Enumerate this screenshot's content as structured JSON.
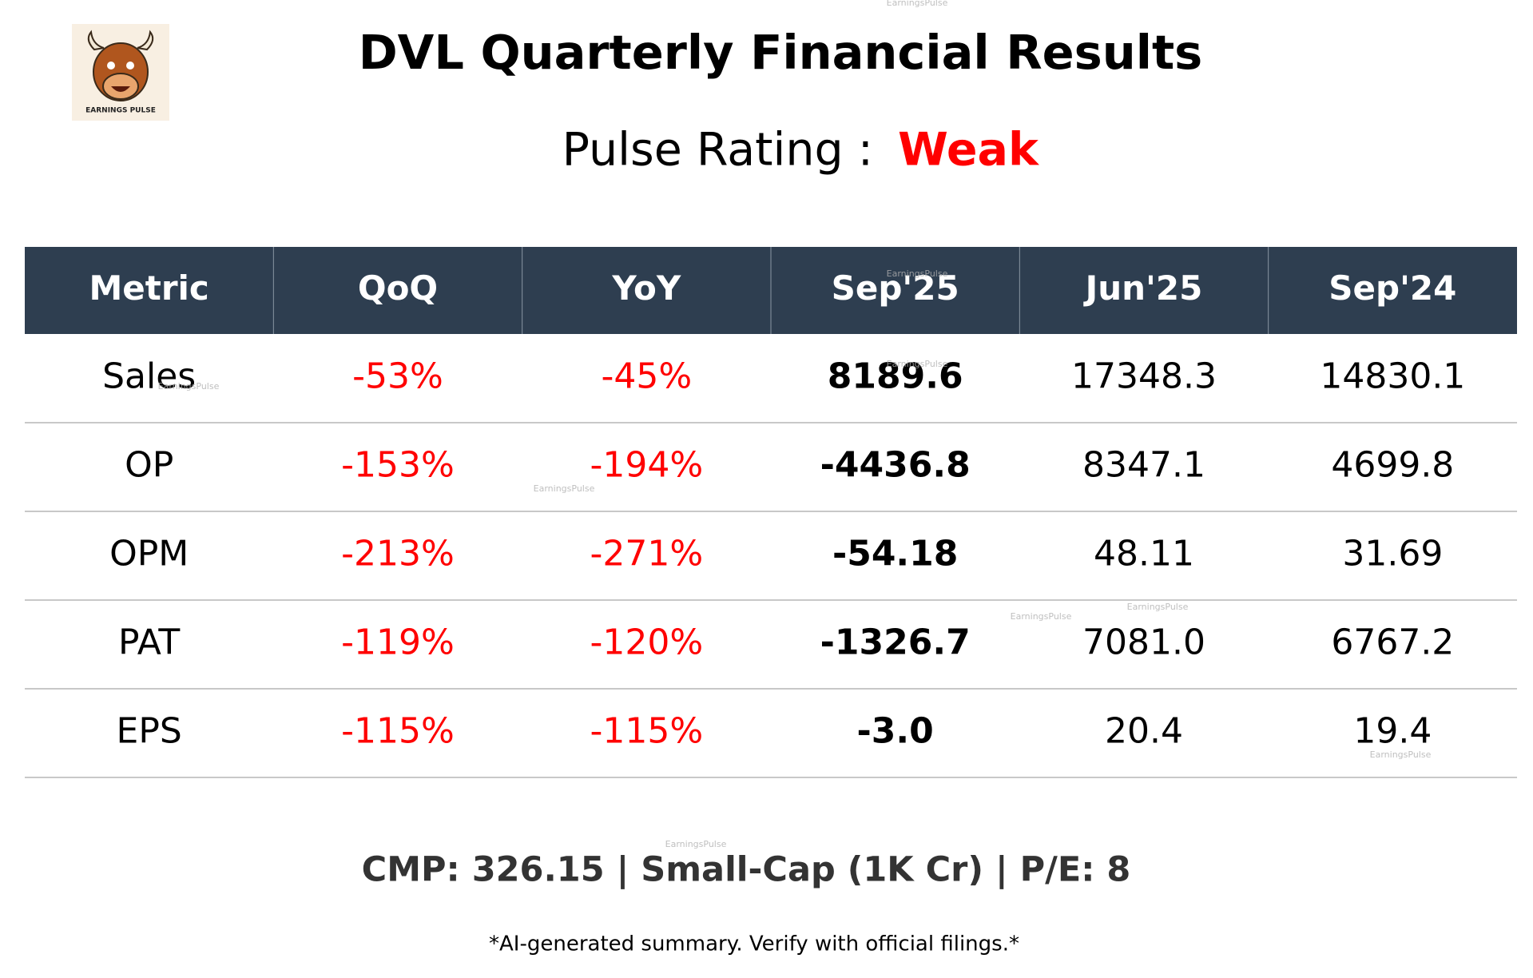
{
  "header": {
    "title": "DVL Quarterly Financial Results",
    "rating_label": "Pulse Rating :",
    "rating": "Weak"
  },
  "logo": {
    "text": "EARNINGS PULSE"
  },
  "watermark": "EarningsPulse",
  "table": {
    "columns": [
      "Metric",
      "QoQ",
      "YoY",
      "Sep'25",
      "Jun'25",
      "Sep'24"
    ],
    "rows": [
      [
        "Sales",
        "-53%",
        "-45%",
        "8189.6",
        "17348.3",
        "14830.1"
      ],
      [
        "OP",
        "-153%",
        "-194%",
        "-4436.8",
        "8347.1",
        "4699.8"
      ],
      [
        "OPM",
        "-213%",
        "-271%",
        "-54.18",
        "48.11",
        "31.69"
      ],
      [
        "PAT",
        "-119%",
        "-120%",
        "-1326.7",
        "7081.0",
        "6767.2"
      ],
      [
        "EPS",
        "-115%",
        "-115%",
        "-3.0",
        "20.4",
        "19.4"
      ]
    ]
  },
  "footer": {
    "summary": "CMP: 326.15 | Small-Cap (1K Cr) | P/E: 8",
    "disclaimer": "*AI-generated summary. Verify with official filings.*"
  }
}
